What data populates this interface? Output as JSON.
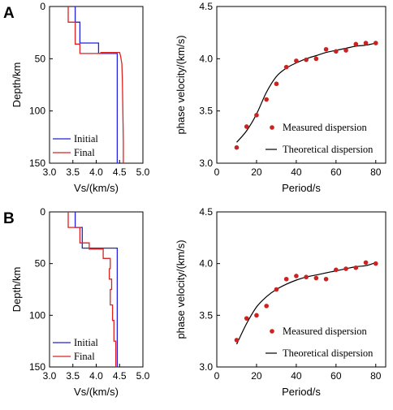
{
  "chart_data": [
    {
      "panel": "A",
      "type": "line",
      "xlabel": "Vs/(km/s)",
      "ylabel": "Depth/km",
      "xlim": [
        3.0,
        5.0
      ],
      "ylim": [
        0,
        150
      ],
      "y_inverted": true,
      "xticks": [
        3.0,
        3.5,
        4.0,
        4.5,
        5.0
      ],
      "yticks": [
        0,
        50,
        100,
        150
      ],
      "legend": "bottom-left",
      "series": [
        {
          "name": "Initial",
          "color": "#2222dd",
          "x": [
            3.55,
            3.55,
            3.65,
            3.65,
            4.05,
            4.05,
            4.45,
            4.45
          ],
          "y": [
            0,
            15,
            15,
            35,
            35,
            45,
            45,
            150
          ]
        },
        {
          "name": "Final",
          "color": "#dd2222",
          "x": [
            3.4,
            3.4,
            3.55,
            3.55,
            3.65,
            3.65,
            4.1,
            4.1,
            4.5,
            4.52,
            4.55,
            4.56,
            4.57,
            4.58,
            4.58
          ],
          "y": [
            0,
            15,
            15,
            36,
            36,
            45,
            45,
            44,
            44,
            47,
            55,
            70,
            100,
            130,
            150
          ]
        }
      ]
    },
    {
      "panel": "A",
      "type": "scatter",
      "xlabel": "Period/s",
      "ylabel": "phase velocity/(km/s)",
      "xlim": [
        0,
        85
      ],
      "ylim": [
        3.0,
        4.5
      ],
      "xticks": [
        0,
        20,
        40,
        60,
        80
      ],
      "yticks": [
        3.0,
        3.5,
        4.0,
        4.5
      ],
      "legend": "bottom-right",
      "series": [
        {
          "name": "Measured dispersion",
          "color": "#cc2222",
          "x": [
            10,
            15,
            20,
            25,
            30,
            35,
            40,
            45,
            50,
            55,
            60,
            65,
            70,
            75,
            80
          ],
          "y": [
            3.15,
            3.35,
            3.46,
            3.61,
            3.76,
            3.92,
            3.98,
            3.99,
            4.0,
            4.09,
            4.07,
            4.08,
            4.14,
            4.15,
            4.15
          ]
        },
        {
          "name": "Theoretical dispersion",
          "color": "#000000",
          "x": [
            10,
            15,
            20,
            25,
            30,
            35,
            40,
            45,
            50,
            55,
            60,
            65,
            70,
            75,
            80
          ],
          "y": [
            3.2,
            3.31,
            3.47,
            3.68,
            3.83,
            3.91,
            3.96,
            4.0,
            4.03,
            4.06,
            4.08,
            4.1,
            4.12,
            4.13,
            4.15
          ]
        }
      ]
    },
    {
      "panel": "B",
      "type": "line",
      "xlabel": "Vs/(km/s)",
      "ylabel": "Depth/km",
      "xlim": [
        3.0,
        5.0
      ],
      "ylim": [
        0,
        150
      ],
      "y_inverted": true,
      "xticks": [
        3.0,
        3.5,
        4.0,
        4.5,
        5.0
      ],
      "yticks": [
        0,
        50,
        100,
        150
      ],
      "legend": "bottom-left",
      "series": [
        {
          "name": "Initial",
          "color": "#2222dd",
          "x": [
            3.55,
            3.55,
            3.7,
            3.7,
            4.45,
            4.45
          ],
          "y": [
            0,
            15,
            15,
            35,
            35,
            150
          ]
        },
        {
          "name": "Final",
          "color": "#dd2222",
          "x": [
            3.4,
            3.4,
            3.65,
            3.65,
            3.85,
            3.85,
            4.15,
            4.15,
            4.3,
            4.3,
            4.28,
            4.28,
            4.33,
            4.33,
            4.3,
            4.3,
            4.35,
            4.35,
            4.38,
            4.38,
            4.42,
            4.42
          ],
          "y": [
            0,
            15,
            15,
            30,
            30,
            36,
            36,
            45,
            45,
            55,
            55,
            65,
            65,
            75,
            75,
            90,
            90,
            105,
            105,
            125,
            125,
            150
          ]
        }
      ]
    },
    {
      "panel": "B",
      "type": "scatter",
      "xlabel": "Period/s",
      "ylabel": "phase velocity/(km/s)",
      "xlim": [
        0,
        85
      ],
      "ylim": [
        3.0,
        4.5
      ],
      "xticks": [
        0,
        20,
        40,
        60,
        80
      ],
      "yticks": [
        3.0,
        3.5,
        4.0,
        4.5
      ],
      "legend": "bottom-right",
      "series": [
        {
          "name": "Measured dispersion",
          "color": "#cc2222",
          "x": [
            10,
            15,
            20,
            25,
            30,
            35,
            40,
            45,
            50,
            55,
            60,
            65,
            70,
            75,
            80
          ],
          "y": [
            3.26,
            3.47,
            3.5,
            3.59,
            3.75,
            3.85,
            3.88,
            3.87,
            3.86,
            3.85,
            3.94,
            3.95,
            3.96,
            4.01,
            4.0
          ]
        },
        {
          "name": "Theoretical dispersion",
          "color": "#000000",
          "x": [
            10,
            15,
            20,
            25,
            30,
            35,
            40,
            45,
            50,
            55,
            60,
            65,
            70,
            75,
            80
          ],
          "y": [
            3.22,
            3.42,
            3.58,
            3.68,
            3.75,
            3.8,
            3.84,
            3.87,
            3.89,
            3.91,
            3.93,
            3.95,
            3.97,
            3.98,
            4.01
          ]
        }
      ]
    }
  ]
}
